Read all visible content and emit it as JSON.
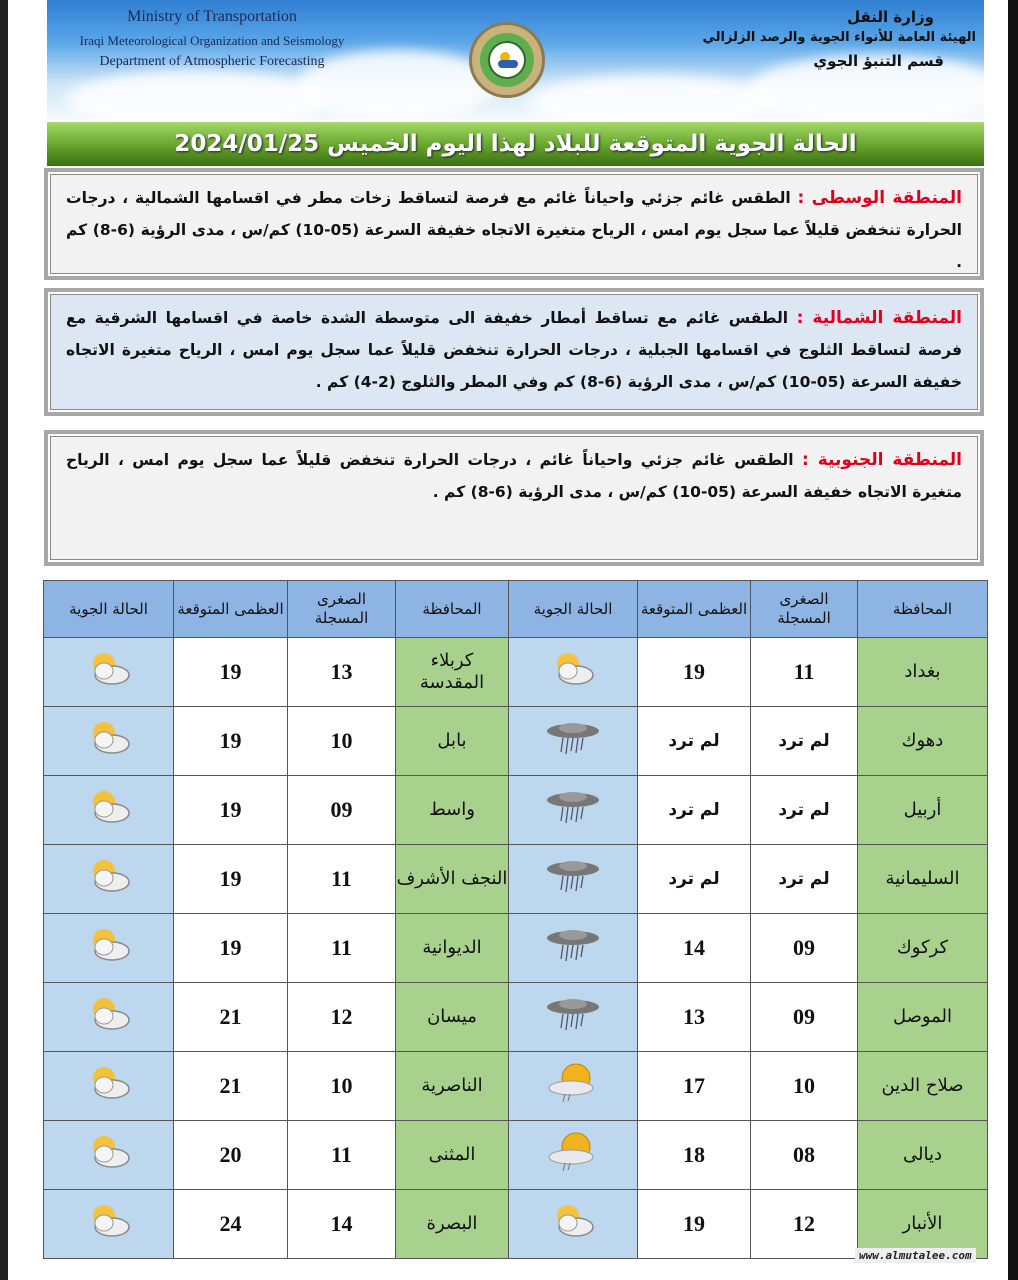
{
  "header": {
    "en_lines": [
      "Ministry of Transportation",
      "Iraqi Meteorological Organization and Seismology",
      "Department of Atmospheric Forecasting"
    ],
    "ar_lines": [
      "وزارة النقل",
      "الهيئة العامة للأنواء الجوية والرصد الزلزالي",
      "قسم التنبؤ الجوي"
    ]
  },
  "title": "الحالة الجوية المتوقعة للبلاد لهذا اليوم الخميس 2024/01/25",
  "regions": [
    {
      "label": "المنطقة الوسطى :",
      "text": " الطقس غائم جزئي واحياناً غائم مع فرصة لتساقط زخات مطر في اقسامها الشمالية ، درجات الحرارة تنخفض قليلاً عما سجل يوم امس ، الرياح متغيرة الاتجاه خفيفة السرعة (05-10) كم/س ، مدى الرؤية (6-8) كم ."
    },
    {
      "label": "المنطقة الشمالية :",
      "text": " الطقس غائم مع تساقط أمطار خفيفة الى متوسطة الشدة خاصة في اقسامها الشرقية مع فرصة لتساقط الثلوج في اقسامها الجبلية ، درجات الحرارة تنخفض قليلاً عما سجل يوم امس ، الرياح متغيرة الاتجاه خفيفة السرعة (05-10) كم/س ، مدى الرؤية (6-8) كم وفي المطر والثلوج (2-4) كم ."
    },
    {
      "label": "المنطقة الجنوبية :",
      "text": " الطقس غائم جزئي واحياناً غائم ، درجات الحرارة تنخفض قليلاً عما سجل يوم امس ، الرياح متغيرة الاتجاه خفيفة السرعة (05-10) كم/س ، مدى الرؤية (6-8) كم ."
    }
  ],
  "table": {
    "headers": [
      "المحافظة",
      "الصغرى المسجلة",
      "العظمى المتوقعة",
      "الحالة الجوية",
      "المحافظة",
      "الصغرى المسجلة",
      "العظمى المتوقعة",
      "الحالة الجوية"
    ],
    "rows": [
      [
        {
          "gov": "بغداد",
          "min": "11",
          "max": "19",
          "icon": "partly-cloudy-icon"
        },
        {
          "gov": "كربلاء المقدسة",
          "min": "13",
          "max": "19",
          "icon": "partly-cloudy-icon"
        }
      ],
      [
        {
          "gov": "دهوك",
          "min": "لم ترد",
          "max": "لم ترد",
          "icon": "rain-cloud-icon"
        },
        {
          "gov": "بابل",
          "min": "10",
          "max": "19",
          "icon": "partly-cloudy-icon"
        }
      ],
      [
        {
          "gov": "أربيل",
          "min": "لم ترد",
          "max": "لم ترد",
          "icon": "rain-cloud-icon"
        },
        {
          "gov": "واسط",
          "min": "09",
          "max": "19",
          "icon": "partly-cloudy-icon"
        }
      ],
      [
        {
          "gov": "السليمانية",
          "min": "لم ترد",
          "max": "لم ترد",
          "icon": "rain-cloud-icon"
        },
        {
          "gov": "النجف الأشرف",
          "min": "11",
          "max": "19",
          "icon": "partly-cloudy-icon"
        }
      ],
      [
        {
          "gov": "كركوك",
          "min": "09",
          "max": "14",
          "icon": "rain-cloud-icon"
        },
        {
          "gov": "الديوانية",
          "min": "11",
          "max": "19",
          "icon": "partly-cloudy-icon"
        }
      ],
      [
        {
          "gov": "الموصل",
          "min": "09",
          "max": "13",
          "icon": "rain-cloud-icon"
        },
        {
          "gov": "ميسان",
          "min": "12",
          "max": "21",
          "icon": "partly-cloudy-icon"
        }
      ],
      [
        {
          "gov": "صلاح الدين",
          "min": "10",
          "max": "17",
          "icon": "sun-shower-icon"
        },
        {
          "gov": "الناصرية",
          "min": "10",
          "max": "21",
          "icon": "partly-cloudy-icon"
        }
      ],
      [
        {
          "gov": "ديالى",
          "min": "08",
          "max": "18",
          "icon": "sun-shower-icon"
        },
        {
          "gov": "المثنى",
          "min": "11",
          "max": "20",
          "icon": "partly-cloudy-icon"
        }
      ],
      [
        {
          "gov": "الأنبار",
          "min": "12",
          "max": "19",
          "icon": "partly-cloudy-icon"
        },
        {
          "gov": "البصرة",
          "min": "14",
          "max": "24",
          "icon": "partly-cloudy-icon"
        }
      ]
    ]
  },
  "watermark": "www.almutalee.com",
  "colors": {
    "region_label": "#e0001b",
    "gov_cell": "#a9d18e",
    "weather_cell": "#bdd7ee",
    "header_cell": "#8eb4e3",
    "banner": "#6fae34"
  }
}
